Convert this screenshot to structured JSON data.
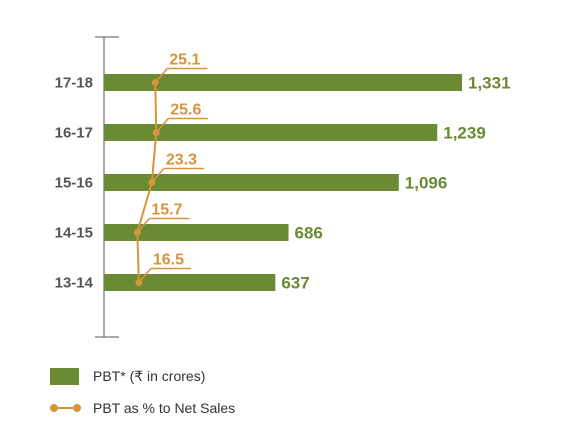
{
  "colors": {
    "bar": "#6a8a34",
    "line": "#d8943a",
    "axis": "#555555",
    "cat_text": "#555555"
  },
  "chart_data": {
    "type": "bar",
    "orientation": "horizontal",
    "categories": [
      "17-18",
      "16-17",
      "15-16",
      "14-15",
      "13-14"
    ],
    "series": [
      {
        "name": "PBT* (₹ in crores)",
        "type": "bar",
        "values": [
          1331,
          1239,
          1096,
          686,
          637
        ],
        "value_labels": [
          "1,331",
          "1,239",
          "1,096",
          "686",
          "637"
        ]
      },
      {
        "name": "PBT as % to Net Sales",
        "type": "line",
        "values": [
          25.1,
          25.6,
          23.3,
          15.7,
          16.5
        ],
        "value_labels": [
          "25.1",
          "25.6",
          "23.3",
          "15.7",
          "16.5"
        ]
      }
    ],
    "xlim": [
      0,
      1550
    ],
    "legend_position": "bottom-left",
    "grid": false
  },
  "legend": {
    "bar_label": "PBT* (₹ in crores)",
    "line_label": "PBT as % to Net Sales"
  }
}
